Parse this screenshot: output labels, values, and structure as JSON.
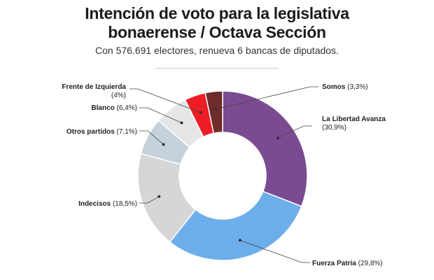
{
  "header": {
    "title_line1": "Intención de voto para la legislativa",
    "title_line2": "bonaerense / Octava Sección",
    "subtitle": "Con 576.691 electores, renueva 6 bancas de diputados."
  },
  "chart_data": {
    "type": "pie",
    "variant": "donut",
    "title": "Intención de voto para la legislativa bonaerense / Octava Sección",
    "subtitle": "Con 576.691 electores, renueva 6 bancas de diputados.",
    "unit": "%",
    "slices": [
      {
        "name": "La Libertad Avanza",
        "value": 30.9,
        "value_label": "(30,9%)",
        "color": "#7b4b91"
      },
      {
        "name": "Fuerza Patria",
        "value": 29.8,
        "value_label": "(29,8%)",
        "color": "#6caeea"
      },
      {
        "name": "Indecisos",
        "value": 18.5,
        "value_label": "(18,5%)",
        "color": "#d6d6d6"
      },
      {
        "name": "Otros partidos",
        "value": 7.1,
        "value_label": "(7,1%)",
        "color": "#c5d2db"
      },
      {
        "name": "Blanco",
        "value": 6.4,
        "value_label": "(6,4%)",
        "color": "#e6e6e6"
      },
      {
        "name": "Frente de Izquierda",
        "value": 4.0,
        "value_label": "(4%)",
        "color": "#ee1c25"
      },
      {
        "name": "Somos",
        "value": 3.3,
        "value_label": "(3,3%)",
        "color": "#6e2c2c"
      }
    ]
  }
}
